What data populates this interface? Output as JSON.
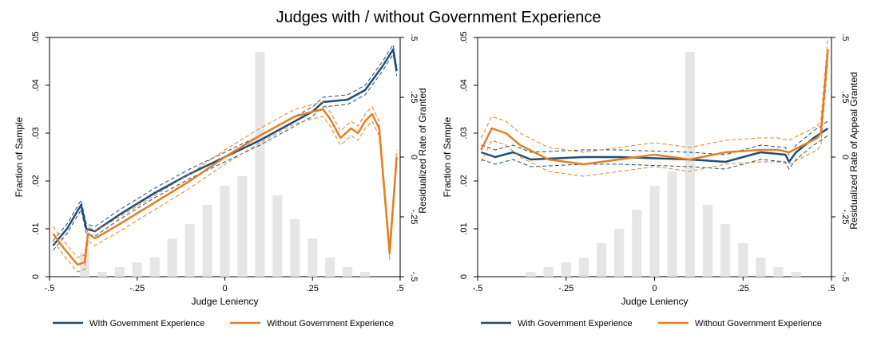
{
  "title": "Judges with / without Government Experience",
  "colors": {
    "with": "#1f4e79",
    "without": "#e67e22",
    "hist": "#e6e6e6",
    "axis": "#000000"
  },
  "chart_data": [
    {
      "type": "line",
      "xlabel": "Judge Leniency",
      "ylabel_left": "Fraction of Sample",
      "ylabel_right": "Residualized Rate of Granted",
      "xlim": [
        -0.5,
        0.5
      ],
      "ylim_left": [
        0,
        0.05
      ],
      "ylim_right": [
        -0.5,
        0.5
      ],
      "xticks": [
        {
          "v": -0.5,
          "label": "-.5"
        },
        {
          "v": -0.25,
          "label": "-.25"
        },
        {
          "v": 0,
          "label": "0"
        },
        {
          "v": 0.25,
          "label": ".25"
        },
        {
          "v": 0.5,
          "label": ".5"
        }
      ],
      "yticks_left": [
        {
          "v": 0,
          "label": "0"
        },
        {
          "v": 0.01,
          "label": ".01"
        },
        {
          "v": 0.02,
          "label": ".02"
        },
        {
          "v": 0.03,
          "label": ".03"
        },
        {
          "v": 0.04,
          "label": ".04"
        },
        {
          "v": 0.05,
          "label": ".05"
        }
      ],
      "yticks_right": [
        {
          "v": -0.5,
          "label": "-.5"
        },
        {
          "v": -0.25,
          "label": "-.25"
        },
        {
          "v": 0,
          "label": "0"
        },
        {
          "v": 0.25,
          "label": ".25"
        },
        {
          "v": 0.5,
          "label": ".5"
        }
      ],
      "legend": [
        "WIth Government Experience",
        "Without Government Experience"
      ],
      "legend_position": "bottom",
      "series": [
        {
          "name": "WIth Government Experience",
          "x": [
            -0.49,
            -0.45,
            -0.41,
            -0.395,
            -0.37,
            -0.3,
            -0.2,
            -0.1,
            0,
            0.1,
            0.2,
            0.25,
            0.28,
            0.35,
            0.4,
            0.45,
            0.48,
            0.49
          ],
          "y": [
            -0.37,
            -0.3,
            -0.2,
            -0.3,
            -0.31,
            -0.24,
            -0.15,
            -0.07,
            0.0,
            0.07,
            0.15,
            0.19,
            0.23,
            0.24,
            0.28,
            0.38,
            0.45,
            0.36
          ],
          "band": 0.02
        },
        {
          "name": "Without Government Experience",
          "x": [
            -0.49,
            -0.46,
            -0.42,
            -0.4,
            -0.39,
            -0.37,
            -0.3,
            -0.2,
            -0.1,
            0,
            0.1,
            0.2,
            0.25,
            0.28,
            0.3,
            0.33,
            0.36,
            0.38,
            0.4,
            0.42,
            0.44,
            0.47,
            0.49
          ],
          "y": [
            -0.32,
            -0.38,
            -0.45,
            -0.44,
            -0.32,
            -0.34,
            -0.28,
            -0.19,
            -0.1,
            0.0,
            0.09,
            0.17,
            0.19,
            0.2,
            0.16,
            0.08,
            0.12,
            0.1,
            0.15,
            0.18,
            0.12,
            -0.4,
            0.0
          ],
          "band": 0.03
        }
      ],
      "histogram": {
        "bin_x": [
          -0.4,
          -0.35,
          -0.3,
          -0.25,
          -0.2,
          -0.15,
          -0.1,
          -0.05,
          0,
          0.05,
          0.1,
          0.15,
          0.2,
          0.25,
          0.3,
          0.35,
          0.4
        ],
        "fraction": [
          0.005,
          0.001,
          0.002,
          0.003,
          0.004,
          0.008,
          0.011,
          0.015,
          0.019,
          0.021,
          0.047,
          0.017,
          0.012,
          0.008,
          0.004,
          0.002,
          0.001
        ]
      }
    },
    {
      "type": "line",
      "xlabel": "Judge Leniency",
      "ylabel_left": "Fraction of Sample",
      "ylabel_right": "Residualized Rate of Appeal Granted",
      "xlim": [
        -0.5,
        0.5
      ],
      "ylim_left": [
        0,
        0.05
      ],
      "ylim_right": [
        -0.5,
        0.5
      ],
      "xticks": [
        {
          "v": -0.5,
          "label": "-.5"
        },
        {
          "v": -0.25,
          "label": "-.25"
        },
        {
          "v": 0,
          "label": "0"
        },
        {
          "v": 0.25,
          "label": ".25"
        },
        {
          "v": 0.5,
          "label": ".5"
        }
      ],
      "yticks_left": [
        {
          "v": 0,
          "label": "0"
        },
        {
          "v": 0.01,
          "label": ".01"
        },
        {
          "v": 0.02,
          "label": ".02"
        },
        {
          "v": 0.03,
          "label": ".03"
        },
        {
          "v": 0.04,
          "label": ".04"
        },
        {
          "v": 0.05,
          "label": ".05"
        }
      ],
      "yticks_right": [
        {
          "v": -0.5,
          "label": "-.5"
        },
        {
          "v": -0.25,
          "label": "-.25"
        },
        {
          "v": 0,
          "label": "0"
        },
        {
          "v": 0.25,
          "label": ".25"
        },
        {
          "v": 0.5,
          "label": ".5"
        }
      ],
      "legend": [
        "With Government Experience",
        "Without Government Experience"
      ],
      "legend_position": "bottom",
      "series": [
        {
          "name": "With Government Experience",
          "x": [
            -0.49,
            -0.45,
            -0.4,
            -0.35,
            -0.2,
            -0.1,
            0,
            0.1,
            0.2,
            0.3,
            0.37,
            0.38,
            0.4,
            0.45,
            0.49
          ],
          "y": [
            0.02,
            0.0,
            0.02,
            -0.01,
            0.0,
            0.0,
            -0.005,
            -0.01,
            -0.02,
            0.02,
            0.01,
            -0.02,
            0.02,
            0.08,
            0.12
          ],
          "band": 0.03
        },
        {
          "name": "Without Government Experience",
          "x": [
            -0.49,
            -0.46,
            -0.42,
            -0.38,
            -0.3,
            -0.2,
            -0.1,
            0,
            0.1,
            0.2,
            0.3,
            0.35,
            0.38,
            0.42,
            0.46,
            0.47,
            0.49
          ],
          "y": [
            0.03,
            0.12,
            0.1,
            0.05,
            -0.01,
            -0.03,
            -0.01,
            0.01,
            -0.01,
            0.02,
            0.03,
            0.03,
            0.02,
            0.05,
            0.08,
            0.1,
            0.45
          ],
          "band": 0.05
        }
      ],
      "histogram": {
        "bin_x": [
          -0.4,
          -0.35,
          -0.3,
          -0.25,
          -0.2,
          -0.15,
          -0.1,
          -0.05,
          0,
          0.05,
          0.1,
          0.15,
          0.2,
          0.25,
          0.3,
          0.35,
          0.4
        ],
        "fraction": [
          0.0,
          0.001,
          0.002,
          0.003,
          0.004,
          0.007,
          0.01,
          0.014,
          0.019,
          0.022,
          0.047,
          0.015,
          0.011,
          0.007,
          0.004,
          0.002,
          0.001
        ]
      }
    }
  ]
}
